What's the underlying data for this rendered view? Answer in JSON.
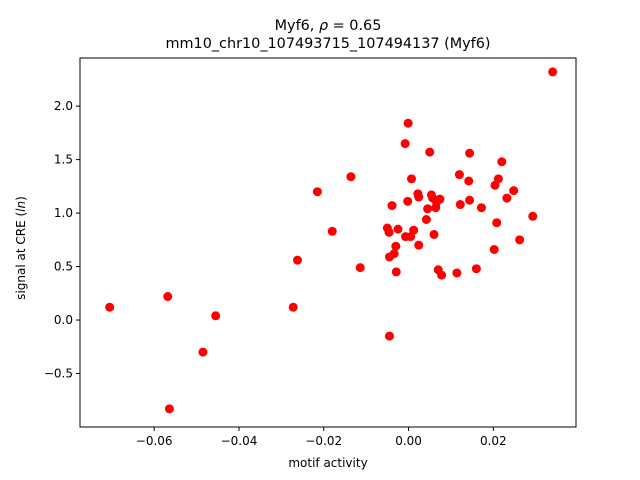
{
  "chart_data": {
    "type": "scatter",
    "title": {
      "gene": "Myf6",
      "rho_symbol": "ρ",
      "rho_value": "= 0.65",
      "subtitle": "mm10_chr10_107493715_107494137 (Myf6)"
    },
    "xlabel": "motif activity",
    "ylabel_prefix": "signal at CRE (",
    "ylabel_var": "ln",
    "ylabel_suffix": ")",
    "xlim": [
      -0.0775,
      0.0395
    ],
    "ylim": [
      -1.0,
      2.45
    ],
    "x_ticks": [
      -0.06,
      -0.04,
      -0.02,
      0.0,
      0.02
    ],
    "x_tick_labels": [
      "−0.06",
      "−0.04",
      "−0.02",
      "0.00",
      "0.02"
    ],
    "y_ticks": [
      -0.5,
      0.0,
      0.5,
      1.0,
      1.5,
      2.0
    ],
    "y_tick_labels": [
      "−0.5",
      "0.0",
      "0.5",
      "1.0",
      "1.5",
      "2.0"
    ],
    "marker_color": "#ff0000",
    "points": [
      {
        "x": -0.0705,
        "y": 0.12
      },
      {
        "x": -0.0568,
        "y": 0.22
      },
      {
        "x": -0.0564,
        "y": -0.83
      },
      {
        "x": -0.0485,
        "y": -0.3
      },
      {
        "x": -0.0455,
        "y": 0.04
      },
      {
        "x": -0.0262,
        "y": 0.56
      },
      {
        "x": -0.0272,
        "y": 0.12
      },
      {
        "x": -0.0215,
        "y": 1.2
      },
      {
        "x": -0.018,
        "y": 0.83
      },
      {
        "x": -0.0136,
        "y": 1.34
      },
      {
        "x": -0.0114,
        "y": 0.49
      },
      {
        "x": -0.005,
        "y": 0.86
      },
      {
        "x": -0.0046,
        "y": 0.82
      },
      {
        "x": -0.0045,
        "y": 0.59
      },
      {
        "x": -0.0045,
        "y": -0.15
      },
      {
        "x": -0.0039,
        "y": 1.07
      },
      {
        "x": -0.0034,
        "y": 0.62
      },
      {
        "x": -0.003,
        "y": 0.69
      },
      {
        "x": -0.0029,
        "y": 0.45
      },
      {
        "x": -0.0025,
        "y": 0.85
      },
      {
        "x": -0.0008,
        "y": 1.65
      },
      {
        "x": -0.0007,
        "y": 0.78
      },
      {
        "x": -0.0001,
        "y": 1.84
      },
      {
        "x": -0.0002,
        "y": 1.11
      },
      {
        "x": 0.0005,
        "y": 0.78
      },
      {
        "x": 0.0007,
        "y": 1.32
      },
      {
        "x": 0.0012,
        "y": 0.84
      },
      {
        "x": 0.0022,
        "y": 1.18
      },
      {
        "x": 0.0024,
        "y": 1.15
      },
      {
        "x": 0.0024,
        "y": 0.7
      },
      {
        "x": 0.0042,
        "y": 0.94
      },
      {
        "x": 0.0045,
        "y": 1.04
      },
      {
        "x": 0.005,
        "y": 1.57
      },
      {
        "x": 0.0054,
        "y": 1.17
      },
      {
        "x": 0.0057,
        "y": 1.14
      },
      {
        "x": 0.006,
        "y": 0.8
      },
      {
        "x": 0.0064,
        "y": 1.05
      },
      {
        "x": 0.0066,
        "y": 1.1
      },
      {
        "x": 0.007,
        "y": 0.47
      },
      {
        "x": 0.0074,
        "y": 1.13
      },
      {
        "x": 0.0078,
        "y": 0.42
      },
      {
        "x": 0.0114,
        "y": 0.44
      },
      {
        "x": 0.012,
        "y": 1.36
      },
      {
        "x": 0.0122,
        "y": 1.08
      },
      {
        "x": 0.0142,
        "y": 1.3
      },
      {
        "x": 0.0144,
        "y": 1.12
      },
      {
        "x": 0.0144,
        "y": 1.56
      },
      {
        "x": 0.016,
        "y": 0.48
      },
      {
        "x": 0.0172,
        "y": 1.05
      },
      {
        "x": 0.0202,
        "y": 0.66
      },
      {
        "x": 0.0204,
        "y": 1.26
      },
      {
        "x": 0.0208,
        "y": 0.91
      },
      {
        "x": 0.0212,
        "y": 1.32
      },
      {
        "x": 0.022,
        "y": 1.48
      },
      {
        "x": 0.0232,
        "y": 1.14
      },
      {
        "x": 0.0248,
        "y": 1.21
      },
      {
        "x": 0.0262,
        "y": 0.75
      },
      {
        "x": 0.0293,
        "y": 0.97
      },
      {
        "x": 0.034,
        "y": 2.32
      }
    ]
  }
}
